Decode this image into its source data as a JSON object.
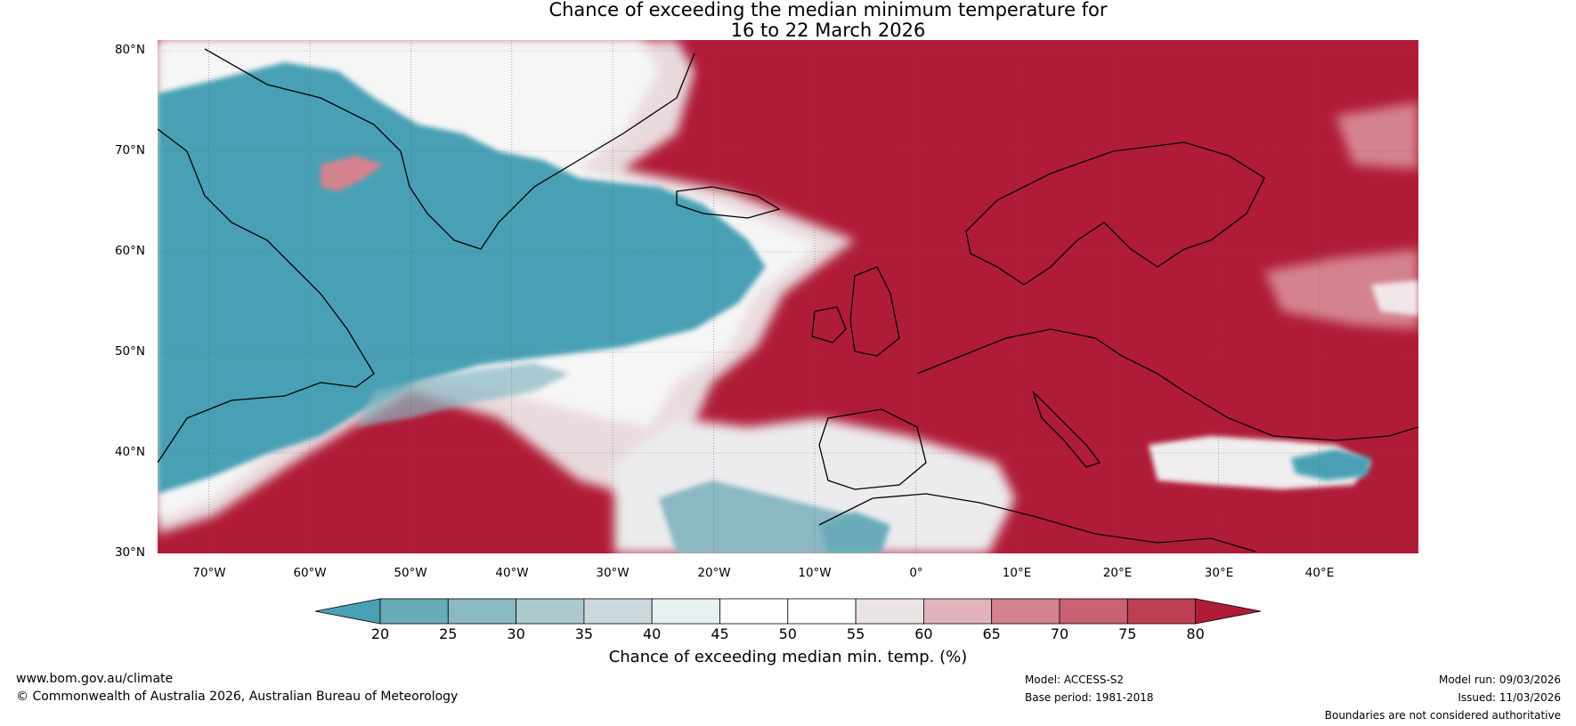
{
  "title": {
    "line1": "Chance of exceeding the median minimum temperature for",
    "line2": "16 to 22 March 2026"
  },
  "lat_labels": [
    "80°N",
    "70°N",
    "60°N",
    "50°N",
    "40°N",
    "30°N"
  ],
  "lon_labels": [
    "70°W",
    "60°W",
    "50°W",
    "40°W",
    "30°W",
    "20°W",
    "10°W",
    "0°",
    "10°E",
    "20°E",
    "30°E",
    "40°E"
  ],
  "colorbar": {
    "ticks": [
      "20",
      "25",
      "30",
      "35",
      "40",
      "45",
      "50",
      "55",
      "60",
      "65",
      "70",
      "75",
      "80"
    ],
    "colors": [
      "#4aa0b4",
      "#6aabba",
      "#8ab8c3",
      "#abc8cd",
      "#cbd9dd",
      "#e8f0f1",
      "#ffffff",
      "#ffffff",
      "#ebe4e5",
      "#e2b3bc",
      "#d5828f",
      "#c96272",
      "#be3f52",
      "#b01c38"
    ],
    "label": "Chance of exceeding median min. temp. (%)"
  },
  "footer": {
    "website": "www.bom.gov.au/climate",
    "copyright": "© Commonwealth of Australia 2026, Australian Bureau of Meteorology",
    "model": "Model: ACCESS-S2",
    "base_period": "Base period: 1981-2018",
    "model_run": "Model run: 09/03/2026",
    "issued": "Issued: 11/03/2026",
    "boundaries": "Boundaries are not considered authoritative"
  }
}
